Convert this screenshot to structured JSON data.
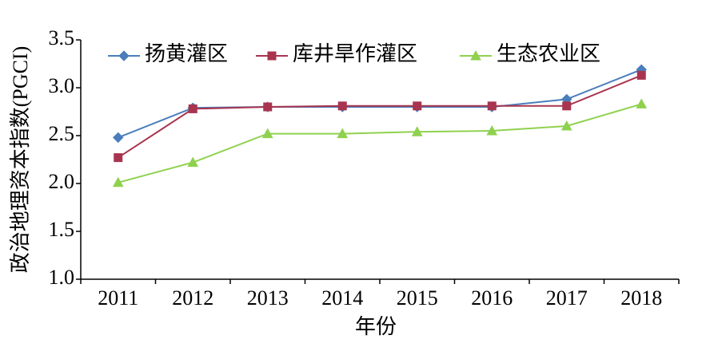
{
  "chart_data": {
    "type": "line",
    "x_label": "年份",
    "y_label": "政治地理资本指数(PGCI)",
    "categories": [
      "2011",
      "2012",
      "2013",
      "2014",
      "2015",
      "2016",
      "2017",
      "2018"
    ],
    "series": [
      {
        "name": "扬黄灌区",
        "color": "#4a7ebb",
        "marker": "diamond",
        "values": [
          2.48,
          2.79,
          2.8,
          2.8,
          2.8,
          2.8,
          2.88,
          3.19
        ]
      },
      {
        "name": "库井旱作灌区",
        "color": "#a8344f",
        "marker": "square",
        "values": [
          2.27,
          2.78,
          2.8,
          2.81,
          2.81,
          2.81,
          2.81,
          3.13
        ]
      },
      {
        "name": "生态农业区",
        "color": "#8fd14f",
        "marker": "triangle",
        "values": [
          2.01,
          2.22,
          2.52,
          2.52,
          2.54,
          2.55,
          2.6,
          2.83
        ]
      }
    ],
    "ylim": [
      1.0,
      3.5
    ],
    "yticks": [
      {
        "value": 1.0,
        "label": "1.0"
      },
      {
        "value": 1.5,
        "label": "1.5"
      },
      {
        "value": 2.0,
        "label": "2.0"
      },
      {
        "value": 2.5,
        "label": "2.5"
      },
      {
        "value": 3.0,
        "label": "3.0"
      },
      {
        "value": 3.5,
        "label": "3.5"
      }
    ],
    "grid": false,
    "legend": "top"
  }
}
